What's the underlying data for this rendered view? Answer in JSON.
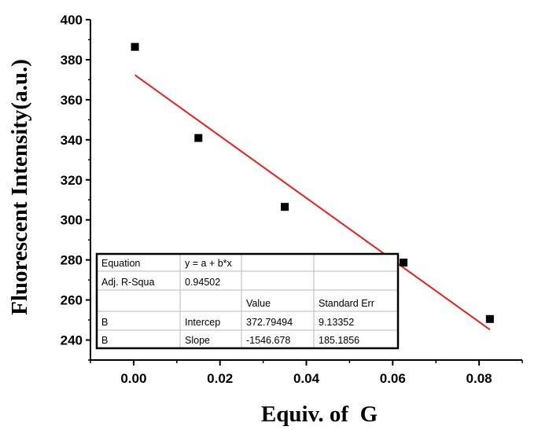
{
  "chart_data": {
    "type": "scatter",
    "xlabel": "Equiv. of  G",
    "ylabel": "Fluorescent Intensity(a.u.)",
    "xlim": [
      -0.01,
      0.09
    ],
    "ylim": [
      230,
      400
    ],
    "x_ticks": [
      0.0,
      0.02,
      0.04,
      0.06,
      0.08
    ],
    "x_tick_labels": [
      "0.00",
      "0.02",
      "0.04",
      "0.06",
      "0.08"
    ],
    "y_ticks": [
      240,
      260,
      280,
      300,
      320,
      340,
      360,
      380,
      400
    ],
    "y_tick_labels": [
      "240",
      "260",
      "280",
      "300",
      "320",
      "340",
      "360",
      "380",
      "400"
    ],
    "grid": false,
    "series": [
      {
        "marker": "square",
        "color": "#000000",
        "points": [
          {
            "x": 0.0003,
            "y": 386.4
          },
          {
            "x": 0.015,
            "y": 340.9
          },
          {
            "x": 0.035,
            "y": 306.5
          },
          {
            "x": 0.0625,
            "y": 278.7
          },
          {
            "x": 0.0825,
            "y": 250.5
          }
        ]
      }
    ],
    "fit_line": {
      "color": "#e8201e",
      "intercept": 372.79494,
      "slope": -1546.678,
      "x_range": [
        0.0003,
        0.0825
      ]
    },
    "fit_table": {
      "rows": [
        [
          "Equation",
          "y = a + b*x",
          "",
          ""
        ],
        [
          "Adj. R-Squa",
          "0.94502",
          "",
          ""
        ],
        [
          "",
          "",
          "Value",
          "Standard Err"
        ],
        [
          "B",
          "Intercep",
          "372.79494",
          "9.13352"
        ],
        [
          "B",
          "Slope",
          "-1546.678",
          "185.1856"
        ]
      ]
    }
  }
}
